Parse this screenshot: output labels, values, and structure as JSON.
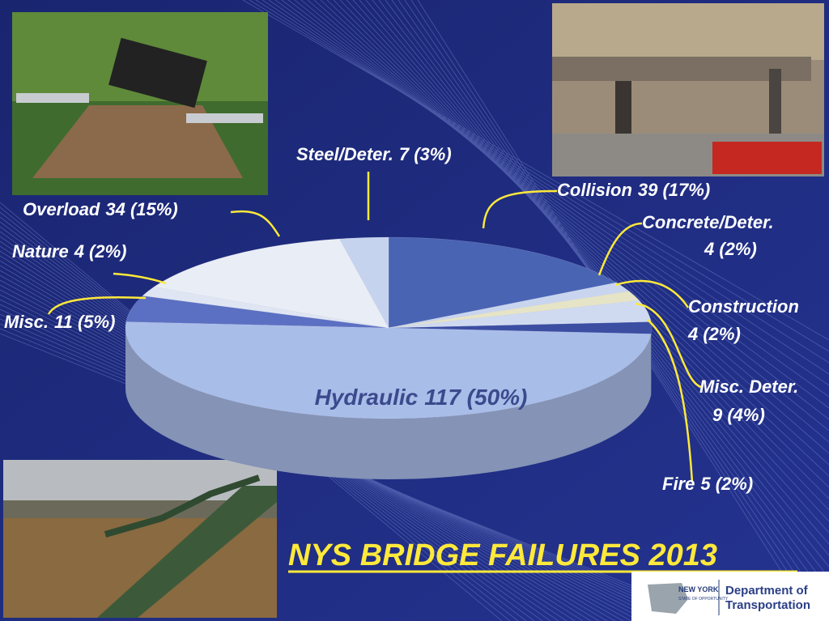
{
  "chart_data": {
    "type": "pie",
    "title": "NYS BRIDGE FAILURES 2013",
    "categories": [
      "Collision",
      "Concrete/Deter.",
      "Construction",
      "Misc. Deter.",
      "Fire",
      "Hydraulic",
      "Misc.",
      "Nature",
      "Overload",
      "Steel/Deter."
    ],
    "values": [
      39,
      4,
      4,
      9,
      5,
      117,
      11,
      4,
      34,
      7
    ],
    "value_labels": [
      "39 (17%)",
      "4 (2%)",
      "4 (2%)",
      "9 (4%)",
      "5 (2%)",
      "117 (50%)",
      "11 (5%)",
      "4 (2%)",
      "34 (15%)",
      "7 (3%)"
    ],
    "colors": [
      "#4a64b4",
      "#c9d5ee",
      "#e6e4c6",
      "#cfdaf1",
      "#3c4ea2",
      "#a9bde9",
      "#5b70c2",
      "#dfe5f2",
      "#e9edf5",
      "#c6d3ef"
    ]
  },
  "logo": {
    "state": "NEW YORK",
    "tagline": "STATE OF OPPORTUNITY",
    "department": "Department of",
    "agency": "Transportation"
  }
}
